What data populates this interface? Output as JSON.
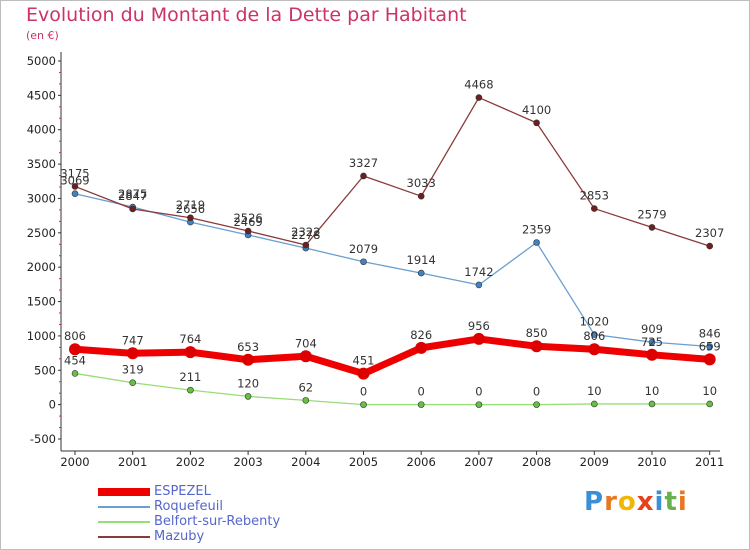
{
  "title": "Evolution du Montant de la Dette par Habitant",
  "subtitle": "(en €)",
  "logo": {
    "text": "Proxiti",
    "letters": [
      "P",
      "r",
      "o",
      "x",
      "i",
      "t",
      "i"
    ],
    "colors": [
      "#3a8fd6",
      "#e87722",
      "#f2b705",
      "#e8401c",
      "#3a8fd6",
      "#6ab04c",
      "#e87722"
    ]
  },
  "chart_data": {
    "type": "line",
    "title": "Evolution du Montant de la Dette par Habitant",
    "subtitle": "(en €)",
    "x": [
      "2000",
      "2001",
      "2002",
      "2003",
      "2004",
      "2005",
      "2006",
      "2007",
      "2008",
      "2009",
      "2010",
      "2011"
    ],
    "ylim": [
      -500,
      5000
    ],
    "yticks": [
      -500,
      0,
      500,
      1000,
      1500,
      2000,
      2500,
      3000,
      3500,
      4000,
      4500,
      5000
    ],
    "grid": false,
    "legend": "bottom-left",
    "series": [
      {
        "name": "ESPEZEL",
        "color": "#ee0000",
        "marker": "#dd0000",
        "width": 7,
        "values": [
          806,
          747,
          764,
          653,
          704,
          451,
          826,
          956,
          850,
          806,
          725,
          659
        ],
        "labels": [
          "806",
          "747",
          "764",
          "653",
          "704",
          "451",
          "826",
          "956",
          "850",
          "806",
          "725",
          "659"
        ]
      },
      {
        "name": "Roquefeuil",
        "color": "#6a9fd0",
        "marker": "#3f82c7",
        "width": 1.3,
        "values": [
          3069,
          2875,
          2656,
          2469,
          2278,
          2079,
          1914,
          1742,
          2359,
          1020,
          909,
          846
        ],
        "labels": [
          "3069",
          "2875",
          "2656",
          "2469",
          "2278",
          "2079",
          "1914",
          "1742",
          "2359",
          "1020",
          "909",
          "846"
        ]
      },
      {
        "name": "Belfort-sur-Rebenty",
        "color": "#99dd77",
        "marker": "#66c044",
        "width": 1.3,
        "values": [
          454,
          319,
          211,
          120,
          62,
          0,
          0,
          0,
          0,
          10,
          10,
          10
        ],
        "labels": [
          "454",
          "319",
          "211",
          "120",
          "62",
          "0",
          "0",
          "0",
          "0",
          "10",
          "10",
          "10"
        ]
      },
      {
        "name": "Mazuby",
        "color": "#8b3a3a",
        "marker": "#6e1f1f",
        "width": 1.3,
        "values": [
          3175,
          2847,
          2719,
          2526,
          2322,
          3327,
          3033,
          4468,
          4100,
          2853,
          2579,
          2307
        ],
        "labels": [
          "3175",
          "2847",
          "2719",
          "2526",
          "2322",
          "3327",
          "3033",
          "4468",
          "4100",
          "2853",
          "2579",
          "2307"
        ]
      }
    ]
  }
}
